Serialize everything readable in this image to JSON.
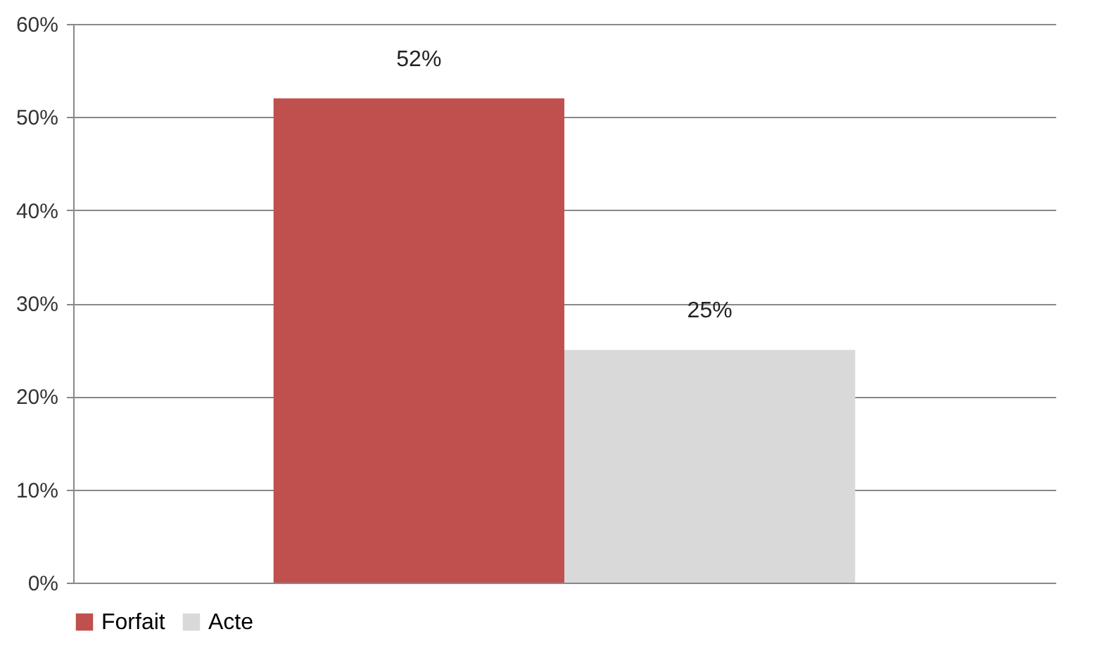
{
  "chart_data": {
    "type": "bar",
    "categories": [
      null
    ],
    "series": [
      {
        "name": "Forfait",
        "color": "#c0504d",
        "values": [
          52
        ],
        "value_labels": [
          "52%"
        ]
      },
      {
        "name": "Acte",
        "color": "#d9d9d9",
        "values": [
          25
        ],
        "value_labels": [
          "25%"
        ]
      }
    ],
    "ylim": [
      0,
      60
    ],
    "yticks": [
      {
        "value": 0,
        "label": "0%"
      },
      {
        "value": 10,
        "label": "10%"
      },
      {
        "value": 20,
        "label": "20%"
      },
      {
        "value": 30,
        "label": "30%"
      },
      {
        "value": 40,
        "label": "40%"
      },
      {
        "value": 50,
        "label": "50%"
      },
      {
        "value": 60,
        "label": "60%"
      }
    ],
    "grid": "y",
    "legend": "bottom"
  }
}
